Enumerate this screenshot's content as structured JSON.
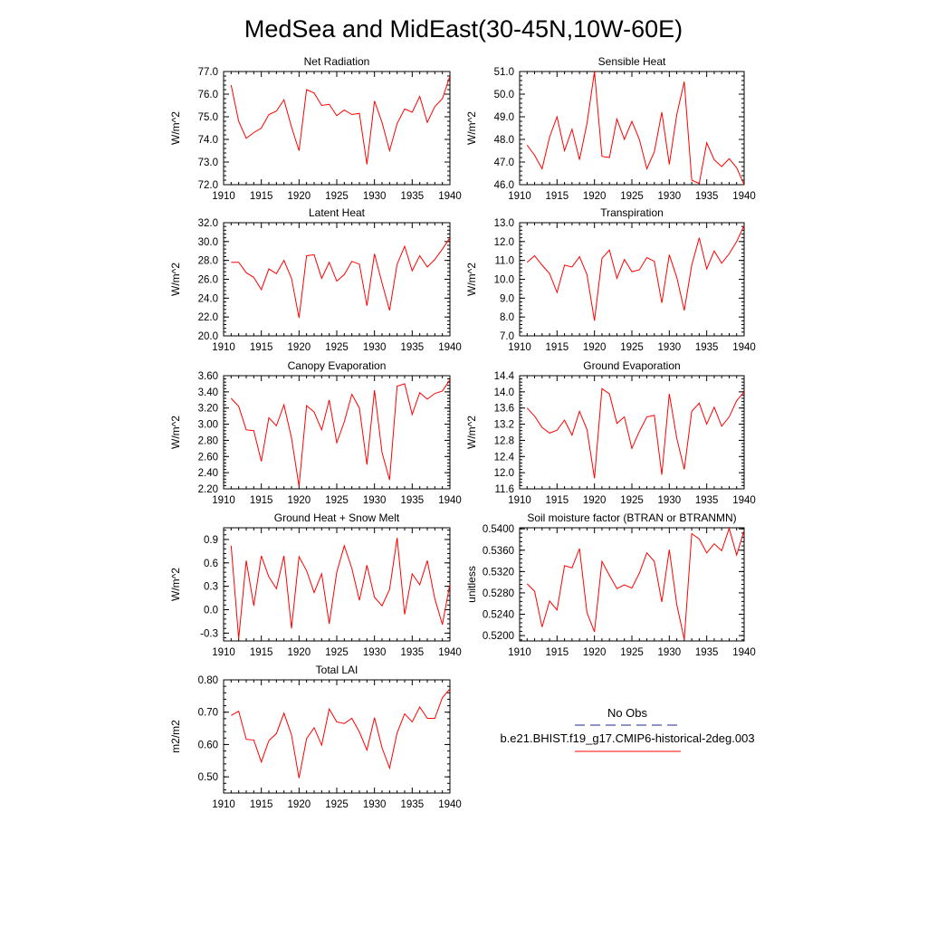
{
  "title": "MedSea and MidEast(30-45N,10W-60E)",
  "series_colors": {
    "model": "#ff0000",
    "obs": "#1f2a8a"
  },
  "legend": {
    "obs_label": "No Obs",
    "model_label": "b.e21.BHIST.f19_g17.CMIP6-historical-2deg.003"
  },
  "chart_data": [
    {
      "type": "line",
      "title": "Net Radiation",
      "ylabel": "W/m^2",
      "xlim": [
        1910,
        1940
      ],
      "ylim": [
        72.0,
        77.0
      ],
      "xticks": [
        1910,
        1915,
        1920,
        1925,
        1930,
        1935,
        1940
      ],
      "yticks": [
        72.0,
        73.0,
        74.0,
        75.0,
        76.0,
        77.0
      ],
      "ytick_labels": [
        "72.0",
        "73.0",
        "74.0",
        "75.0",
        "76.0",
        "77.0"
      ],
      "x": [
        1911,
        1912,
        1913,
        1914,
        1915,
        1916,
        1917,
        1918,
        1919,
        1920,
        1921,
        1922,
        1923,
        1924,
        1925,
        1926,
        1927,
        1928,
        1929,
        1930,
        1931,
        1932,
        1933,
        1934,
        1935,
        1936,
        1937,
        1938,
        1939,
        1940
      ],
      "series": [
        {
          "values": [
            76.4,
            74.8,
            74.05,
            74.3,
            74.5,
            75.1,
            75.25,
            75.75,
            74.55,
            73.5,
            76.2,
            76.05,
            75.5,
            75.55,
            75.05,
            75.3,
            75.1,
            75.15,
            72.9,
            75.7,
            74.75,
            73.5,
            74.7,
            75.35,
            75.2,
            75.9,
            74.75,
            75.45,
            75.8,
            76.8
          ]
        }
      ]
    },
    {
      "type": "line",
      "title": "Sensible Heat",
      "ylabel": "W/m^2",
      "xlim": [
        1910,
        1940
      ],
      "ylim": [
        46.0,
        51.0
      ],
      "xticks": [
        1910,
        1915,
        1920,
        1925,
        1930,
        1935,
        1940
      ],
      "yticks": [
        46.0,
        47.0,
        48.0,
        49.0,
        50.0,
        51.0
      ],
      "ytick_labels": [
        "46.0",
        "47.0",
        "48.0",
        "49.0",
        "50.0",
        "51.0"
      ],
      "x": [
        1911,
        1912,
        1913,
        1914,
        1915,
        1916,
        1917,
        1918,
        1919,
        1920,
        1921,
        1922,
        1923,
        1924,
        1925,
        1926,
        1927,
        1928,
        1929,
        1930,
        1931,
        1932,
        1933,
        1934,
        1935,
        1936,
        1937,
        1938,
        1939,
        1940
      ],
      "series": [
        {
          "values": [
            47.75,
            47.3,
            46.7,
            48.1,
            49.0,
            47.5,
            48.45,
            47.1,
            48.7,
            51.0,
            47.25,
            47.2,
            48.9,
            48.0,
            48.8,
            48.0,
            46.7,
            47.45,
            49.2,
            46.9,
            49.1,
            50.55,
            46.2,
            46.05,
            47.85,
            47.1,
            46.8,
            47.15,
            46.75,
            46.0
          ]
        }
      ]
    },
    {
      "type": "line",
      "title": "Latent Heat",
      "ylabel": "W/m^2",
      "xlim": [
        1910,
        1940
      ],
      "ylim": [
        20.0,
        32.0
      ],
      "xticks": [
        1910,
        1915,
        1920,
        1925,
        1930,
        1935,
        1940
      ],
      "yticks": [
        20.0,
        22.0,
        24.0,
        26.0,
        28.0,
        30.0,
        32.0
      ],
      "ytick_labels": [
        "20.0",
        "22.0",
        "24.0",
        "26.0",
        "28.0",
        "30.0",
        "32.0"
      ],
      "x": [
        1911,
        1912,
        1913,
        1914,
        1915,
        1916,
        1917,
        1918,
        1919,
        1920,
        1921,
        1922,
        1923,
        1924,
        1925,
        1926,
        1927,
        1928,
        1929,
        1930,
        1931,
        1932,
        1933,
        1934,
        1935,
        1936,
        1937,
        1938,
        1939,
        1940
      ],
      "series": [
        {
          "values": [
            27.8,
            27.8,
            26.7,
            26.2,
            24.9,
            27.1,
            26.6,
            28.0,
            26.1,
            21.9,
            28.5,
            28.6,
            26.1,
            27.8,
            25.8,
            26.5,
            27.9,
            27.6,
            23.2,
            28.7,
            25.6,
            22.7,
            27.6,
            29.5,
            26.9,
            28.5,
            27.3,
            28.1,
            29.2,
            30.4
          ]
        }
      ]
    },
    {
      "type": "line",
      "title": "Transpiration",
      "ylabel": "W/m^2",
      "xlim": [
        1910,
        1940
      ],
      "ylim": [
        7.0,
        13.0
      ],
      "xticks": [
        1910,
        1915,
        1920,
        1925,
        1930,
        1935,
        1940
      ],
      "yticks": [
        7.0,
        8.0,
        9.0,
        10.0,
        11.0,
        12.0,
        13.0
      ],
      "ytick_labels": [
        "7.0",
        "8.0",
        "9.0",
        "10.0",
        "11.0",
        "12.0",
        "13.0"
      ],
      "x": [
        1911,
        1912,
        1913,
        1914,
        1915,
        1916,
        1917,
        1918,
        1919,
        1920,
        1921,
        1922,
        1923,
        1924,
        1925,
        1926,
        1927,
        1928,
        1929,
        1930,
        1931,
        1932,
        1933,
        1934,
        1935,
        1936,
        1937,
        1938,
        1939,
        1940
      ],
      "series": [
        {
          "values": [
            10.9,
            11.25,
            10.75,
            10.3,
            9.3,
            10.75,
            10.65,
            11.2,
            10.25,
            7.8,
            11.1,
            11.55,
            10.05,
            11.05,
            10.4,
            10.5,
            11.15,
            10.95,
            8.75,
            11.3,
            10.1,
            8.35,
            10.75,
            12.2,
            10.55,
            11.5,
            10.85,
            11.35,
            12.0,
            12.85
          ]
        }
      ]
    },
    {
      "type": "line",
      "title": "Canopy Evaporation",
      "ylabel": "W/m^2",
      "xlim": [
        1910,
        1940
      ],
      "ylim": [
        2.2,
        3.6
      ],
      "xticks": [
        1910,
        1915,
        1920,
        1925,
        1930,
        1935,
        1940
      ],
      "yticks": [
        2.2,
        2.4,
        2.6,
        2.8,
        3.0,
        3.2,
        3.4,
        3.6
      ],
      "ytick_labels": [
        "2.20",
        "2.40",
        "2.60",
        "2.80",
        "3.00",
        "3.20",
        "3.40",
        "3.60"
      ],
      "x": [
        1911,
        1912,
        1913,
        1914,
        1915,
        1916,
        1917,
        1918,
        1919,
        1920,
        1921,
        1922,
        1923,
        1924,
        1925,
        1926,
        1927,
        1928,
        1929,
        1930,
        1931,
        1932,
        1933,
        1934,
        1935,
        1936,
        1937,
        1938,
        1939,
        1940
      ],
      "series": [
        {
          "values": [
            3.32,
            3.22,
            2.93,
            2.92,
            2.54,
            3.08,
            2.98,
            3.24,
            2.83,
            2.23,
            3.23,
            3.15,
            2.93,
            3.3,
            2.77,
            3.03,
            3.37,
            3.2,
            2.5,
            3.42,
            2.65,
            2.31,
            3.47,
            3.5,
            3.12,
            3.39,
            3.31,
            3.38,
            3.41,
            3.55
          ]
        }
      ]
    },
    {
      "type": "line",
      "title": "Ground Evaporation",
      "ylabel": "W/m^2",
      "xlim": [
        1910,
        1940
      ],
      "ylim": [
        11.6,
        14.4
      ],
      "xticks": [
        1910,
        1915,
        1920,
        1925,
        1930,
        1935,
        1940
      ],
      "yticks": [
        11.6,
        12.0,
        12.4,
        12.8,
        13.2,
        13.6,
        14.0,
        14.4
      ],
      "ytick_labels": [
        "11.6",
        "12.0",
        "12.4",
        "12.8",
        "13.2",
        "13.6",
        "14.0",
        "14.4"
      ],
      "x": [
        1911,
        1912,
        1913,
        1914,
        1915,
        1916,
        1917,
        1918,
        1919,
        1920,
        1921,
        1922,
        1923,
        1924,
        1925,
        1926,
        1927,
        1928,
        1929,
        1930,
        1931,
        1932,
        1933,
        1934,
        1935,
        1936,
        1937,
        1938,
        1939,
        1940
      ],
      "series": [
        {
          "values": [
            13.6,
            13.4,
            13.12,
            12.98,
            13.05,
            13.3,
            12.93,
            13.52,
            13.07,
            11.86,
            14.08,
            13.95,
            13.22,
            13.38,
            12.6,
            13.02,
            13.38,
            13.42,
            11.95,
            13.95,
            12.85,
            12.08,
            13.52,
            13.72,
            13.2,
            13.62,
            13.15,
            13.38,
            13.78,
            14.0
          ]
        }
      ]
    },
    {
      "type": "line",
      "title": "Ground Heat + Snow Melt",
      "ylabel": "W/m^2",
      "xlim": [
        1910,
        1940
      ],
      "ylim": [
        -0.4,
        1.05
      ],
      "xticks": [
        1910,
        1915,
        1920,
        1925,
        1930,
        1935,
        1940
      ],
      "yticks": [
        -0.3,
        0.0,
        0.3,
        0.6,
        0.9
      ],
      "ytick_labels": [
        "-0.3",
        "0.0",
        "0.3",
        "0.6",
        "0.9"
      ],
      "x": [
        1911,
        1912,
        1913,
        1914,
        1915,
        1916,
        1917,
        1918,
        1919,
        1920,
        1921,
        1922,
        1923,
        1924,
        1925,
        1926,
        1927,
        1928,
        1929,
        1930,
        1931,
        1932,
        1933,
        1934,
        1935,
        1936,
        1937,
        1938,
        1939,
        1940
      ],
      "series": [
        {
          "values": [
            0.82,
            -0.37,
            0.63,
            0.05,
            0.69,
            0.42,
            0.27,
            0.69,
            -0.24,
            0.68,
            0.5,
            0.22,
            0.46,
            -0.18,
            0.48,
            0.82,
            0.53,
            0.12,
            0.57,
            0.16,
            0.05,
            0.26,
            0.92,
            -0.06,
            0.46,
            0.32,
            0.63,
            0.14,
            -0.19,
            0.33
          ]
        }
      ]
    },
    {
      "type": "line",
      "title": "Soil moisture factor (BTRAN or BTRANMN)",
      "ylabel": "unitless",
      "xlim": [
        1910,
        1940
      ],
      "ylim": [
        0.519,
        0.5402
      ],
      "xticks": [
        1910,
        1915,
        1920,
        1925,
        1930,
        1935,
        1940
      ],
      "yticks": [
        0.52,
        0.524,
        0.528,
        0.532,
        0.536,
        0.54
      ],
      "ytick_labels": [
        "0.5200",
        "0.5240",
        "0.5280",
        "0.5320",
        "0.5360",
        "0.5400"
      ],
      "x": [
        1911,
        1912,
        1913,
        1914,
        1915,
        1916,
        1917,
        1918,
        1919,
        1920,
        1921,
        1922,
        1923,
        1924,
        1925,
        1926,
        1927,
        1928,
        1929,
        1930,
        1931,
        1932,
        1933,
        1934,
        1935,
        1936,
        1937,
        1938,
        1939,
        1940
      ],
      "series": [
        {
          "values": [
            0.5297,
            0.5283,
            0.5216,
            0.5265,
            0.5248,
            0.5331,
            0.5327,
            0.5363,
            0.5243,
            0.5207,
            0.5339,
            0.5313,
            0.5288,
            0.5295,
            0.5289,
            0.5317,
            0.5355,
            0.5339,
            0.5263,
            0.5361,
            0.5258,
            0.5193,
            0.5391,
            0.5381,
            0.5355,
            0.5372,
            0.5359,
            0.5401,
            0.5351,
            0.5397
          ]
        }
      ]
    },
    {
      "type": "line",
      "title": "Total LAI",
      "ylabel": "m2/m2",
      "xlim": [
        1910,
        1940
      ],
      "ylim": [
        0.45,
        0.8
      ],
      "xticks": [
        1910,
        1915,
        1920,
        1925,
        1930,
        1935,
        1940
      ],
      "yticks": [
        0.5,
        0.6,
        0.7,
        0.8
      ],
      "ytick_labels": [
        "0.50",
        "0.60",
        "0.70",
        "0.80"
      ],
      "x": [
        1911,
        1912,
        1913,
        1914,
        1915,
        1916,
        1917,
        1918,
        1919,
        1920,
        1921,
        1922,
        1923,
        1924,
        1925,
        1926,
        1927,
        1928,
        1929,
        1930,
        1931,
        1932,
        1933,
        1934,
        1935,
        1936,
        1937,
        1938,
        1939,
        1940
      ],
      "series": [
        {
          "values": [
            0.69,
            0.703,
            0.616,
            0.614,
            0.546,
            0.612,
            0.634,
            0.697,
            0.63,
            0.496,
            0.618,
            0.652,
            0.598,
            0.71,
            0.67,
            0.665,
            0.681,
            0.639,
            0.583,
            0.683,
            0.59,
            0.527,
            0.636,
            0.695,
            0.67,
            0.716,
            0.681,
            0.681,
            0.745,
            0.772
          ]
        }
      ]
    }
  ]
}
